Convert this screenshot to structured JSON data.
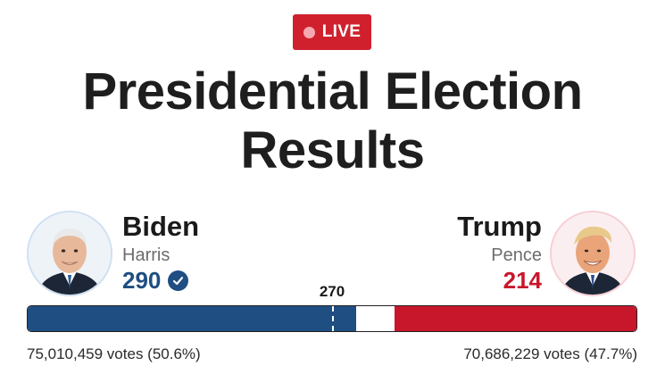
{
  "badge": {
    "label": "LIVE",
    "color": "#d0202e"
  },
  "title": {
    "line1": "Presidential Election",
    "line2": "Results"
  },
  "threshold": {
    "label": "270",
    "value": 270,
    "total": 538
  },
  "democrat": {
    "name": "Biden",
    "running_mate": "Harris",
    "electoral_votes": "290",
    "ev_value": 290,
    "winner_icon": "check-circle-icon",
    "popular_votes": "75,010,459 votes (50.6%)",
    "color": "#1f4e82"
  },
  "republican": {
    "name": "Trump",
    "running_mate": "Pence",
    "electoral_votes": "214",
    "ev_value": 214,
    "popular_votes": "70,686,229 votes (47.7%)",
    "color": "#c8162b"
  }
}
